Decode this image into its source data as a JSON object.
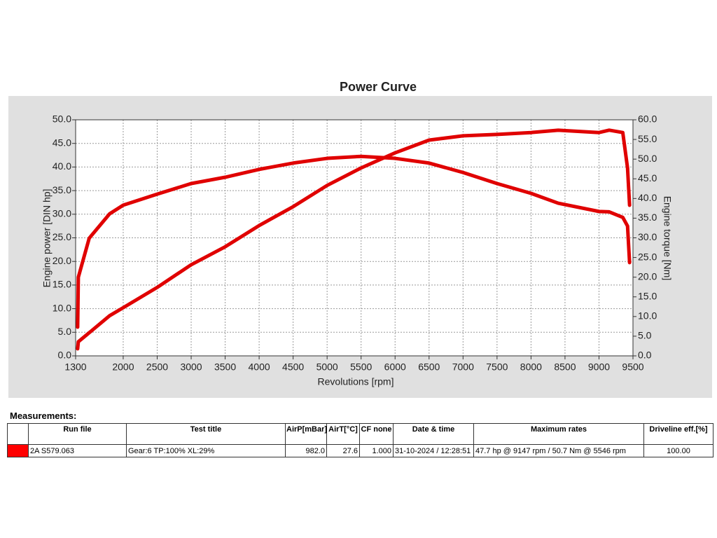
{
  "chart_data": {
    "type": "line",
    "title": "Power Curve",
    "x_label": "Revolutions [rpm]",
    "y_label": "Engine power [DIN hp]",
    "y2_label": "Engine torque [Nm]",
    "x": [
      1330,
      1340,
      1500,
      1800,
      2000,
      2500,
      3000,
      3500,
      4000,
      4500,
      5000,
      5500,
      6000,
      6500,
      7000,
      7500,
      8000,
      8400,
      9000,
      9150,
      9350,
      9420,
      9450
    ],
    "series": [
      {
        "name": "Engine power",
        "color": "#e00000",
        "axis": "y",
        "values": [
          1.5,
          3.0,
          4.9,
          8.5,
          10.2,
          14.5,
          19.3,
          23.1,
          27.6,
          31.6,
          36.1,
          39.8,
          43.0,
          45.7,
          46.6,
          46.9,
          47.3,
          47.8,
          47.3,
          47.8,
          47.3,
          39.8,
          31.9
        ]
      },
      {
        "name": "Engine torque",
        "color": "#e00000",
        "axis": "y2",
        "values": [
          7.3,
          20.0,
          29.9,
          36.1,
          38.3,
          41.1,
          43.8,
          45.4,
          47.4,
          49.0,
          50.2,
          50.7,
          50.2,
          49.0,
          46.6,
          43.8,
          41.3,
          38.8,
          36.7,
          36.6,
          35.2,
          33.0,
          23.7
        ]
      }
    ],
    "xlim": [
      1300,
      9500
    ],
    "xticks": [
      1300,
      2000,
      2500,
      3000,
      3500,
      4000,
      4500,
      5000,
      5500,
      6000,
      6500,
      7000,
      7500,
      8000,
      8500,
      9000,
      9500
    ],
    "ylim": [
      0,
      50
    ],
    "yticks": [
      {
        "value": 0,
        "label": "0.0"
      },
      {
        "value": 5,
        "label": "5.0"
      },
      {
        "value": 10,
        "label": "10.0"
      },
      {
        "value": 15,
        "label": "15.0"
      },
      {
        "value": 20,
        "label": "20.0"
      },
      {
        "value": 25,
        "label": "25.0"
      },
      {
        "value": 30,
        "label": "30.0"
      },
      {
        "value": 35,
        "label": "35.0"
      },
      {
        "value": 40,
        "label": "40.0"
      },
      {
        "value": 45,
        "label": "45.0"
      },
      {
        "value": 50,
        "label": "50.0"
      }
    ],
    "y2lim": [
      0,
      60
    ],
    "y2ticks": [
      {
        "value": 0,
        "label": "0.0"
      },
      {
        "value": 5,
        "label": "5.0"
      },
      {
        "value": 10,
        "label": "10.0"
      },
      {
        "value": 15,
        "label": "15.0"
      },
      {
        "value": 20,
        "label": "20.0"
      },
      {
        "value": 25,
        "label": "25.0"
      },
      {
        "value": 30,
        "label": "30.0"
      },
      {
        "value": 35,
        "label": "35.0"
      },
      {
        "value": 40,
        "label": "40.0"
      },
      {
        "value": 45,
        "label": "45.0"
      },
      {
        "value": 50,
        "label": "50.0"
      },
      {
        "value": 55,
        "label": "55.0"
      },
      {
        "value": 60,
        "label": "60.0"
      }
    ],
    "grid": true
  },
  "table": {
    "title": "Measurements:",
    "headers": [
      "Run file",
      "Test title",
      "AirP[mBar]",
      "AirT[°C]",
      "CF none",
      "Date & time",
      "Maximum rates",
      "Driveline eff.[%]"
    ],
    "rows": [
      {
        "color": "#ff0000",
        "cells": [
          "2A S579.063",
          "Gear:6 TP:100% XL:29%",
          "982.0",
          "27.6",
          "1.000",
          "31-10-2024 / 12:28:51",
          "47.7 hp @ 9147 rpm / 50.7 Nm @ 5546 rpm",
          "100.00"
        ]
      }
    ]
  }
}
